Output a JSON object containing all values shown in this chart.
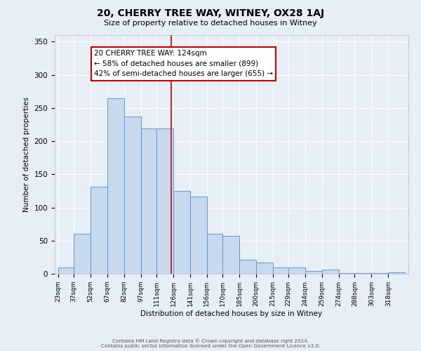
{
  "title": "20, CHERRY TREE WAY, WITNEY, OX28 1AJ",
  "subtitle": "Size of property relative to detached houses in Witney",
  "xlabel": "Distribution of detached houses by size in Witney",
  "ylabel": "Number of detached properties",
  "bin_labels": [
    "23sqm",
    "37sqm",
    "52sqm",
    "67sqm",
    "82sqm",
    "97sqm",
    "111sqm",
    "126sqm",
    "141sqm",
    "156sqm",
    "170sqm",
    "185sqm",
    "200sqm",
    "215sqm",
    "229sqm",
    "244sqm",
    "259sqm",
    "274sqm",
    "288sqm",
    "303sqm",
    "318sqm"
  ],
  "bin_edges": [
    23,
    37,
    52,
    67,
    82,
    97,
    111,
    126,
    141,
    156,
    170,
    185,
    200,
    215,
    229,
    244,
    259,
    274,
    288,
    303,
    318,
    333
  ],
  "bar_heights": [
    10,
    60,
    131,
    265,
    237,
    219,
    219,
    125,
    116,
    60,
    57,
    21,
    17,
    10,
    10,
    4,
    6,
    1,
    1,
    1,
    2
  ],
  "bar_color": "#c8d9ed",
  "bar_edge_color": "#5b9bd5",
  "vline_x": 124,
  "vline_color": "#cc0000",
  "annotation_title": "20 CHERRY TREE WAY: 124sqm",
  "annotation_line1": "← 58% of detached houses are smaller (899)",
  "annotation_line2": "42% of semi-detached houses are larger (655) →",
  "annotation_box_color": "#ffffff",
  "annotation_box_edge": "#cc0000",
  "ylim": [
    0,
    360
  ],
  "yticks": [
    0,
    50,
    100,
    150,
    200,
    250,
    300,
    350
  ],
  "bg_color": "#e8eef5",
  "grid_color": "#ffffff",
  "footer1": "Contains HM Land Registry data © Crown copyright and database right 2024.",
  "footer2": "Contains public sector information licensed under the Open Government Licence v3.0."
}
